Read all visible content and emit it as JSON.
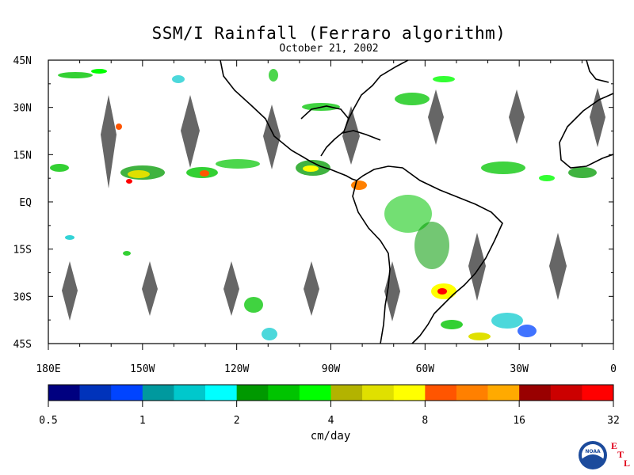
{
  "title": "SSM/I Rainfall (Ferraro algorithm)",
  "subtitle": "October 21, 2002",
  "map": {
    "lat_labels": [
      "45N",
      "30N",
      "15N",
      "EQ",
      "15S",
      "30S",
      "45S"
    ],
    "lon_labels": [
      "180E",
      "150W",
      "120W",
      "90W",
      "60W",
      "30W",
      "0"
    ],
    "lon_range": [
      -180,
      0
    ],
    "lat_range": [
      -45,
      45
    ]
  },
  "colorbar": {
    "unit_label": "cm/day",
    "tick_labels": [
      "0.5",
      "1",
      "2",
      "4",
      "8",
      "16",
      "32"
    ],
    "colors": [
      "#000080",
      "#0033bb",
      "#0044ff",
      "#00999e",
      "#00c8cc",
      "#00ffff",
      "#009900",
      "#00c400",
      "#00ff00",
      "#b3b300",
      "#e0e000",
      "#ffff00",
      "#ff5500",
      "#ff8000",
      "#ffaa00",
      "#990000",
      "#cc0000",
      "#ff0000"
    ]
  },
  "logos": {
    "noaa": "NOAA",
    "etl": [
      "E",
      "T",
      "L"
    ]
  },
  "missing_data_color": "#666666",
  "land_outline_color": "#000000"
}
